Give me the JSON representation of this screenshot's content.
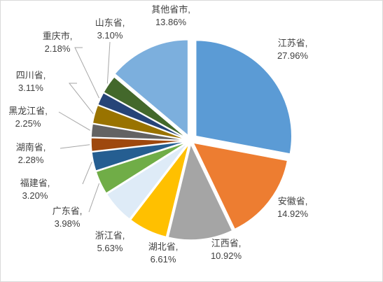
{
  "chart_data": {
    "type": "pie",
    "title": "",
    "exploded": true,
    "unit": "%",
    "slices": [
      {
        "name": "江苏省",
        "value": 27.96,
        "label": "27.96%",
        "color": "#5b9bd5"
      },
      {
        "name": "安徽省",
        "value": 14.92,
        "label": "14.92%",
        "color": "#ed7d31"
      },
      {
        "name": "江西省",
        "value": 10.92,
        "label": "10.92%",
        "color": "#a5a5a5"
      },
      {
        "name": "湖北省",
        "value": 6.61,
        "label": "6.61%",
        "color": "#ffc000"
      },
      {
        "name": "浙江省",
        "value": 5.63,
        "label": "5.63%",
        "color": "#deebf7"
      },
      {
        "name": "广东省",
        "value": 3.98,
        "label": "3.98%",
        "color": "#70ad47"
      },
      {
        "name": "福建省",
        "value": 3.2,
        "label": "3.20%",
        "color": "#255e91"
      },
      {
        "name": "湖南省",
        "value": 2.28,
        "label": "2.28%",
        "color": "#9e480e"
      },
      {
        "name": "黑龙江省",
        "value": 2.25,
        "label": "2.25%",
        "color": "#636363"
      },
      {
        "name": "四川省",
        "value": 3.11,
        "label": "3.11%",
        "color": "#997300"
      },
      {
        "name": "重庆市",
        "value": 2.18,
        "label": "2.18%",
        "color": "#264478"
      },
      {
        "name": "山东省",
        "value": 3.1,
        "label": "3.10%",
        "color": "#43682b"
      },
      {
        "name": "其他省市",
        "value": 13.86,
        "label": "13.86%",
        "color": "#7cafdd"
      }
    ]
  }
}
